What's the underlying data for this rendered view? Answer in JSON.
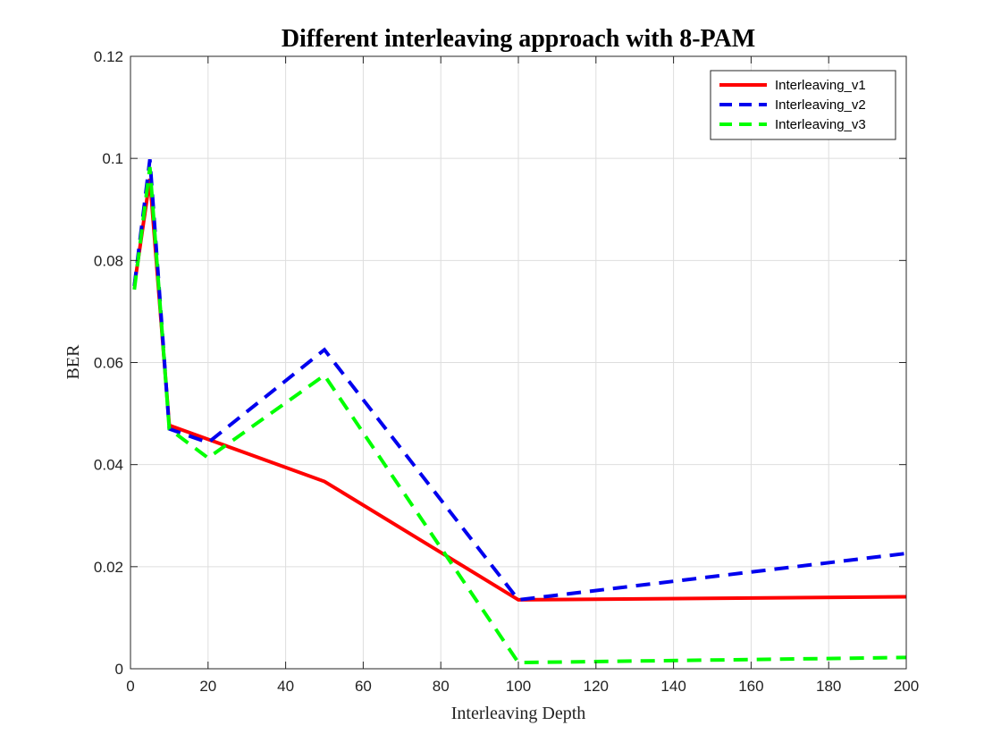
{
  "chart_data": {
    "type": "line",
    "title": "Different interleaving approach with 8-PAM",
    "xlabel": "Interleaving Depth",
    "ylabel": "BER",
    "xlim": [
      0,
      200
    ],
    "ylim": [
      0,
      0.12
    ],
    "xticks": [
      0,
      20,
      40,
      60,
      80,
      100,
      120,
      140,
      160,
      180,
      200
    ],
    "yticks": [
      0,
      0.02,
      0.04,
      0.06,
      0.08,
      0.1,
      0.12
    ],
    "xtick_labels": [
      "0",
      "20",
      "40",
      "60",
      "80",
      "100",
      "120",
      "140",
      "160",
      "180",
      "200"
    ],
    "ytick_labels": [
      "0",
      "0.02",
      "0.04",
      "0.06",
      "0.08",
      "0.1",
      "0.12"
    ],
    "grid": true,
    "legend_position": "top-right",
    "series": [
      {
        "name": "Interleaving_v1",
        "color": "#ff0000",
        "style": "solid",
        "x": [
          1,
          5,
          10,
          50,
          100,
          200
        ],
        "y": [
          0.075,
          0.096,
          0.0477,
          0.0367,
          0.0135,
          0.0141
        ]
      },
      {
        "name": "Interleaving_v2",
        "color": "#0000ee",
        "style": "dashed",
        "x": [
          1,
          5,
          10,
          20,
          50,
          100,
          200
        ],
        "y": [
          0.075,
          0.0998,
          0.047,
          0.0443,
          0.0625,
          0.0135,
          0.0226
        ]
      },
      {
        "name": "Interleaving_v3",
        "color": "#00ff00",
        "style": "dashed",
        "x": [
          1,
          5,
          10,
          20,
          50,
          100,
          200
        ],
        "y": [
          0.0743,
          0.0983,
          0.047,
          0.0413,
          0.0575,
          0.0012,
          0.0022
        ]
      }
    ]
  }
}
